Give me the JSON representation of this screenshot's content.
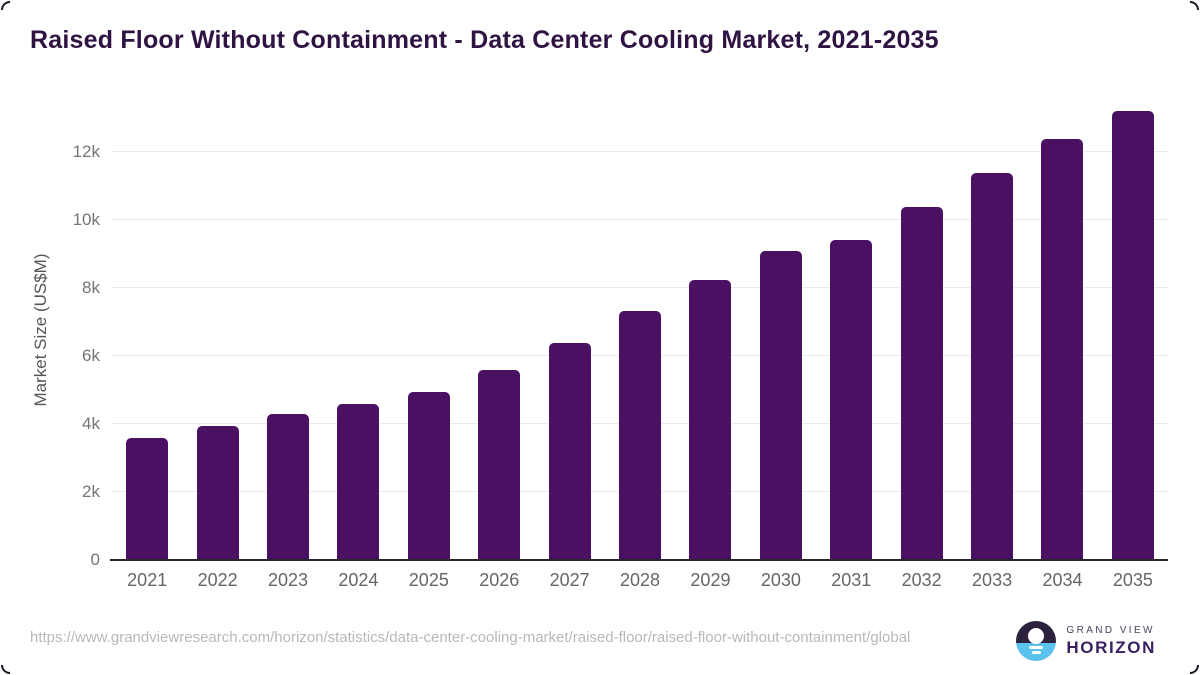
{
  "page": {
    "title": "Raised Floor Without Containment - Data Center Cooling Market, 2021-2035"
  },
  "chart_data": {
    "type": "bar",
    "title": "Raised Floor Without Containment - Data Center Cooling Market, 2021-2035",
    "xlabel": "",
    "ylabel": "Market Size (US$M)",
    "categories": [
      "2021",
      "2022",
      "2023",
      "2024",
      "2025",
      "2026",
      "2027",
      "2028",
      "2029",
      "2030",
      "2031",
      "2032",
      "2033",
      "2034",
      "2035"
    ],
    "values": [
      3600,
      3930,
      4290,
      4600,
      4930,
      5600,
      6380,
      7320,
      8250,
      9100,
      9410,
      10370,
      11380,
      12370,
      13210
    ],
    "ylim": [
      0,
      13530
    ],
    "yticks": [
      {
        "value": 0,
        "label": "0"
      },
      {
        "value": 2000,
        "label": "2k"
      },
      {
        "value": 4000,
        "label": "4k"
      },
      {
        "value": 6000,
        "label": "6k"
      },
      {
        "value": 8000,
        "label": "8k"
      },
      {
        "value": 10000,
        "label": "10k"
      },
      {
        "value": 12000,
        "label": "12k"
      }
    ],
    "grid": "horizontal",
    "legend": "none",
    "bar_color": "#4a1162"
  },
  "footer": {
    "source_url": "https://www.grandviewresearch.com/horizon/statistics/data-center-cooling-market/raised-floor/raised-floor-without-containment/global",
    "logo": {
      "line1": "GRAND VIEW",
      "line2": "HORIZON"
    }
  },
  "colors": {
    "bar": "#4a1162",
    "title_text": "#2f1342",
    "axis_label_text": "#666666",
    "gridline": "#e9e9e9",
    "axis_line": "#262626",
    "url_text": "#b8b8b8",
    "logo_dark": "#2d2140",
    "logo_blue": "#5bc2ee"
  }
}
